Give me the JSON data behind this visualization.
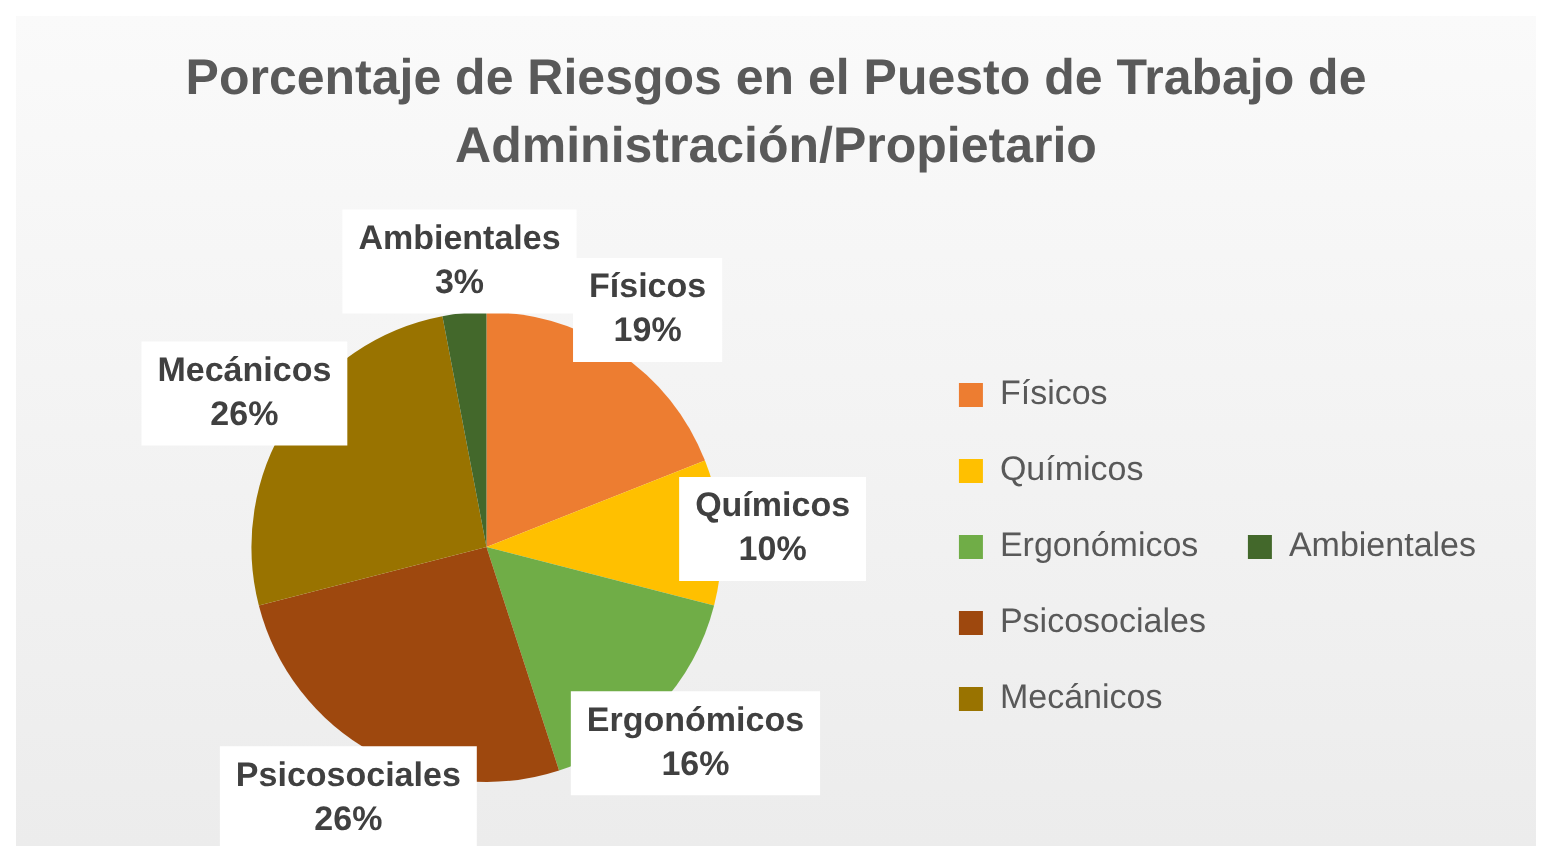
{
  "chart_data": {
    "type": "pie",
    "title": "Porcentaje de Riesgos en el Puesto de Trabajo de Administración/Propietario",
    "categories": [
      "Físicos",
      "Químicos",
      "Ergonómicos",
      "Psicosociales",
      "Mecánicos",
      "Ambientales"
    ],
    "values": [
      19,
      10,
      16,
      26,
      26,
      3
    ],
    "value_labels": [
      "19%",
      "10%",
      "16%",
      "26%",
      "26%",
      "3%"
    ],
    "colors": [
      "#ed7d31",
      "#ffc000",
      "#70ad47",
      "#9e480e",
      "#997300",
      "#43682b"
    ],
    "legend": "right"
  }
}
